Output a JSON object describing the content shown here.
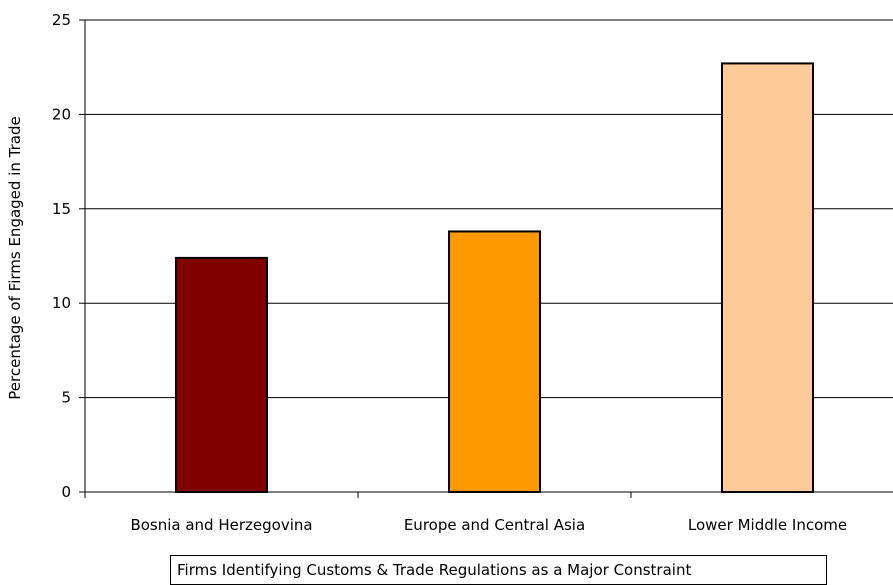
{
  "chart_data": {
    "type": "bar",
    "categories": [
      "Bosnia and Herzegovina",
      "Europe and Central Asia",
      "Lower Middle Income"
    ],
    "values": [
      12.4,
      13.8,
      22.7
    ],
    "colors": [
      "#800000",
      "#FF9900",
      "#FFCC99"
    ],
    "xlabel": "Firms Identifying Customs & Trade Regulations as a Major Constraint",
    "ylabel": "Percentage of Firms Engaged in Trade",
    "ylim": [
      0,
      25
    ],
    "yticks": [
      "0",
      "5",
      "10",
      "15",
      "20",
      "25"
    ],
    "grid": true,
    "legend": "none"
  }
}
